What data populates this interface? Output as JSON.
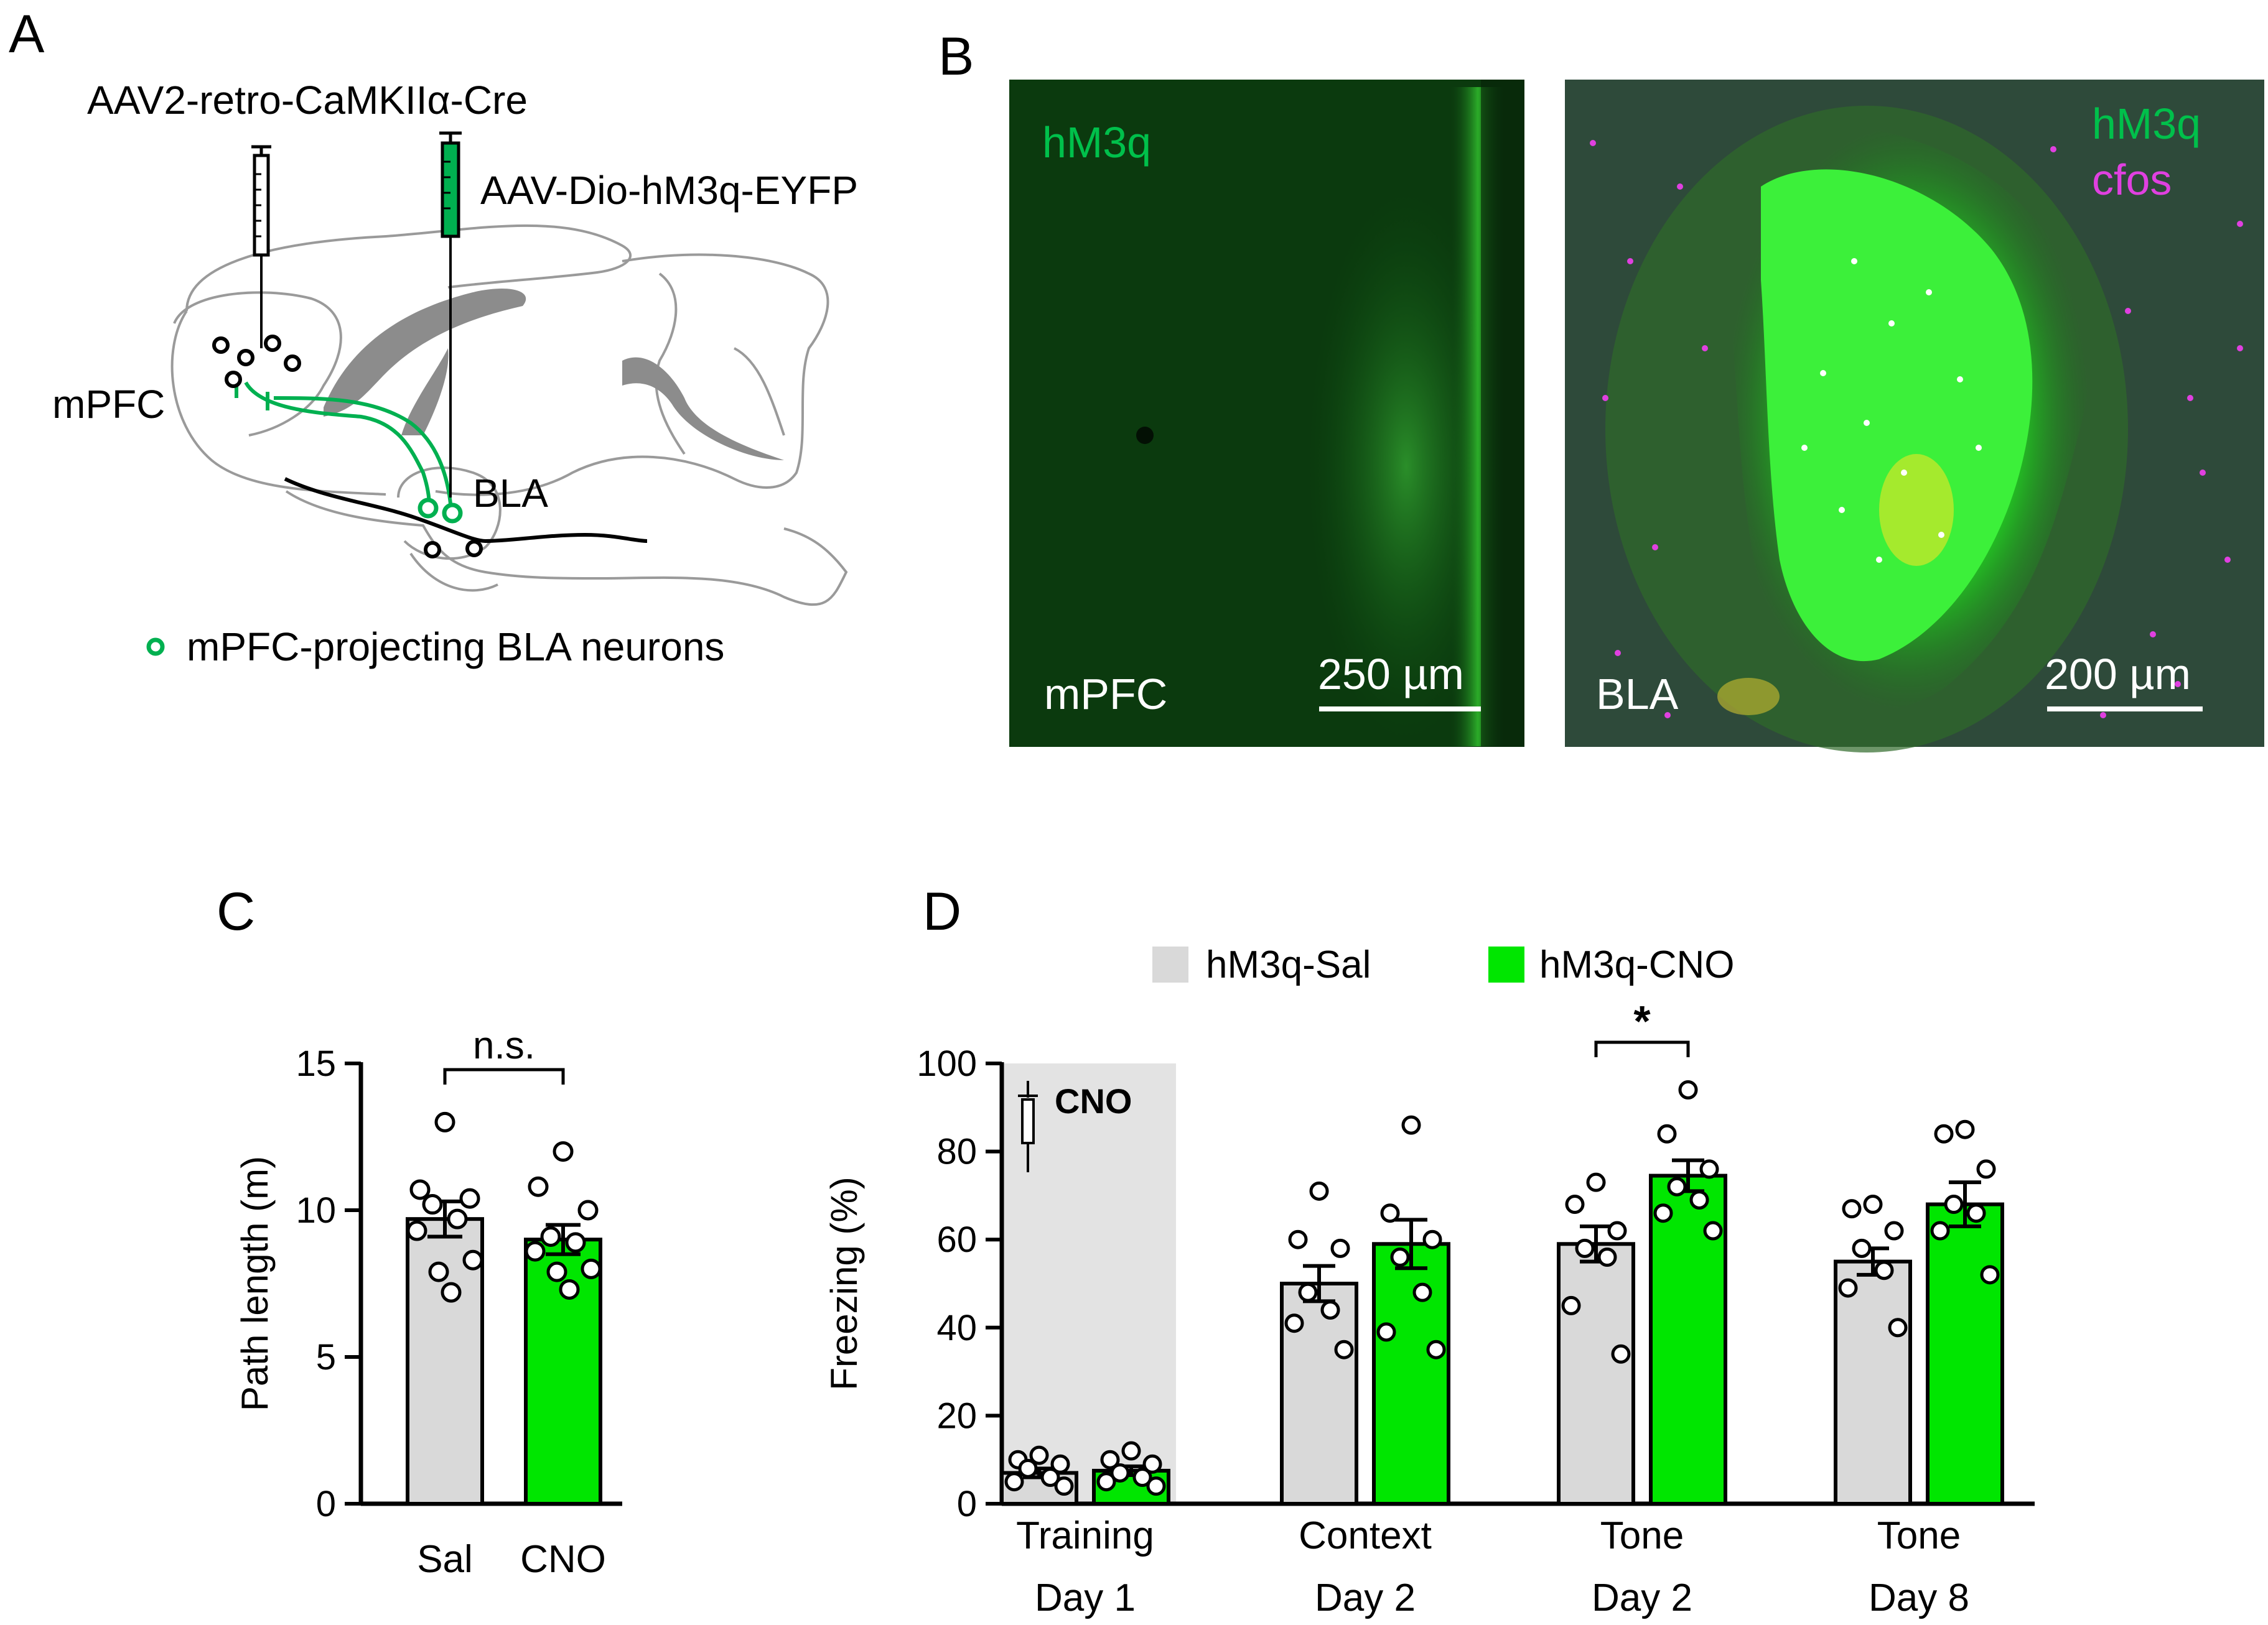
{
  "panel_a": {
    "letter": "A",
    "virus_retro": "AAV2-retro-CaMKIIα-Cre",
    "virus_dio": "AAV-Dio-hM3q-EYFP",
    "region_mpfc": "mPFC",
    "region_bla": "BLA",
    "legend_neurons": "mPFC-projecting BLA neurons",
    "colors": {
      "green": "#00b050",
      "brain_line": "#9a9a9a",
      "ventricle": "#8c8c8c"
    }
  },
  "panel_b": {
    "letter": "B",
    "image1": {
      "marker": "hM3q",
      "region": "mPFC",
      "scale_bar": "250 µm"
    },
    "image2": {
      "marker1": "hM3q",
      "marker2": "cfos",
      "region": "BLA",
      "scale_bar": "200 µm"
    },
    "colors": {
      "hm3q": "#22e022",
      "cfos": "#e040e0"
    }
  },
  "panel_c": {
    "letter": "C",
    "significance": "n.s."
  },
  "panel_d": {
    "letter": "D",
    "significance": "*",
    "cno_annotation": "CNO"
  },
  "colors": {
    "sal": "#d9d9d9",
    "cno": "#00e600"
  },
  "chart_data": [
    {
      "type": "bar",
      "ylabel": "Path length (m)",
      "ylim": [
        0,
        15
      ],
      "yticks": [
        "0",
        "5",
        "10",
        "15"
      ],
      "categories": [
        "Sal",
        "CNO"
      ],
      "values": [
        9.7,
        9.0
      ],
      "sem": [
        0.6,
        0.5
      ],
      "points": [
        [
          13.0,
          10.7,
          10.4,
          10.2,
          9.7,
          9.3,
          8.3,
          7.9,
          7.2
        ],
        [
          12.0,
          10.8,
          10.0,
          9.1,
          8.9,
          8.6,
          8.0,
          7.9,
          7.3
        ]
      ],
      "significance": "n.s."
    },
    {
      "type": "bar",
      "ylabel": "Freezing (%)",
      "ylim": [
        0,
        100
      ],
      "yticks": [
        "0",
        "20",
        "40",
        "60",
        "80",
        "100"
      ],
      "legend": "top",
      "series_names": [
        "hM3q-Sal",
        "hM3q-CNO"
      ],
      "groups": [
        {
          "label_line1": "Training",
          "label_line2": "Day 1",
          "sal": 7.0,
          "sal_sem": 1.0,
          "cno": 7.5,
          "cno_sem": 1.0,
          "sal_points": [
            11,
            10,
            9,
            8,
            6,
            5,
            4
          ],
          "cno_points": [
            12,
            10,
            9,
            7,
            6,
            5,
            4
          ]
        },
        {
          "label_line1": "Context",
          "label_line2": "Day 2",
          "sal": 50.0,
          "sal_sem": 4.0,
          "cno": 59.0,
          "cno_sem": 5.5,
          "sal_points": [
            71,
            60,
            58,
            48,
            44,
            41,
            35
          ],
          "cno_points": [
            86,
            66,
            60,
            56,
            48,
            39,
            35
          ]
        },
        {
          "label_line1": "Tone",
          "label_line2": "Day 2",
          "sal": 59.0,
          "sal_sem": 4.0,
          "cno": 74.5,
          "cno_sem": 3.5,
          "sal_points": [
            73,
            68,
            62,
            58,
            56,
            45,
            34
          ],
          "cno_points": [
            94,
            84,
            76,
            72,
            69,
            66,
            62
          ]
        },
        {
          "label_line1": "Tone",
          "label_line2": "Day 8",
          "sal": 55.0,
          "sal_sem": 3.0,
          "cno": 68.0,
          "cno_sem": 5.0,
          "sal_points": [
            68,
            67,
            62,
            58,
            53,
            49,
            40
          ],
          "cno_points": [
            85,
            84,
            76,
            68,
            66,
            62,
            52
          ]
        }
      ],
      "significance": "*",
      "shaded_group": "Training",
      "shaded_annotation": "CNO"
    }
  ]
}
